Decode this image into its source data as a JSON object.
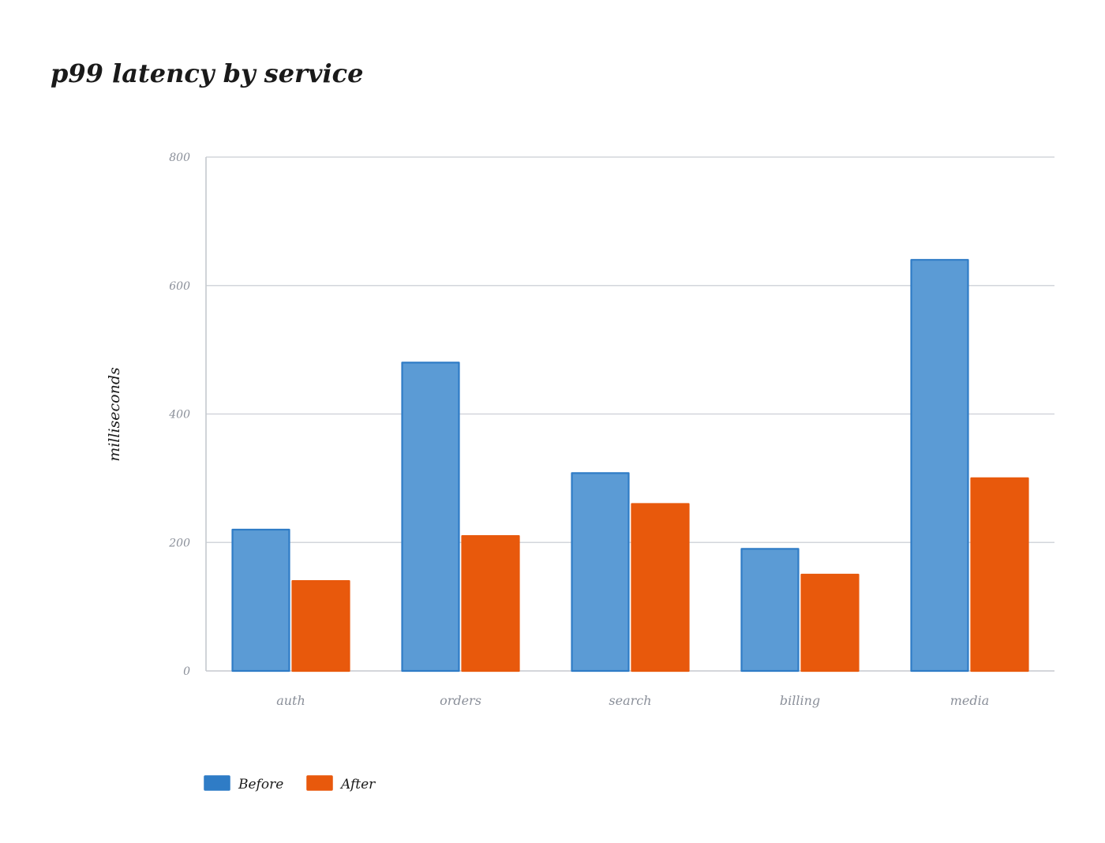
{
  "chart_data": {
    "type": "bar",
    "title": "p99 latency by service",
    "xlabel": "",
    "ylabel": "milliseconds",
    "categories": [
      "auth",
      "orders",
      "search",
      "billing",
      "media"
    ],
    "series": [
      {
        "name": "Before",
        "color": "#5b9bd5",
        "stroke": "#2f7cc6",
        "values": [
          220,
          480,
          308,
          190,
          640
        ]
      },
      {
        "name": "After",
        "color": "#e8590c",
        "stroke": "#e8590c",
        "values": [
          140,
          210,
          260,
          150,
          300
        ]
      }
    ],
    "ylim": [
      0,
      800
    ],
    "yticks": [
      0,
      200,
      400,
      600,
      800
    ],
    "grid": true,
    "legend_position": "bottom-left"
  }
}
